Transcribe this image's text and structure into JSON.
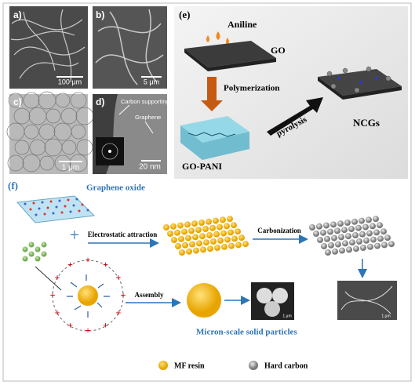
{
  "panels": {
    "a": {
      "label": "a)",
      "scale_bar": "100 μm"
    },
    "b": {
      "label": "b)",
      "scale_bar": "5 μm"
    },
    "c": {
      "label": "c)",
      "scale_bar": "1 μm"
    },
    "d": {
      "label": "d)",
      "scale_bar": "20 nm",
      "annotations": [
        "Carbon supporting",
        "Graphene"
      ]
    },
    "e": {
      "label": "(e)",
      "steps": [
        "Aniline",
        "GO",
        "Polymerization",
        "GO-PANI",
        "pyrolysis",
        "NCGs"
      ]
    },
    "f": {
      "label": "(f)",
      "labels": [
        "Graphene oxide",
        "Electrostatic attraction",
        "Carbonization",
        "Assembly",
        "Micron-scale solid particles"
      ],
      "inset_scale_bars": [
        "1 μm",
        "1 μm"
      ],
      "legend": [
        "MF resin",
        "Hard carbon"
      ]
    }
  }
}
